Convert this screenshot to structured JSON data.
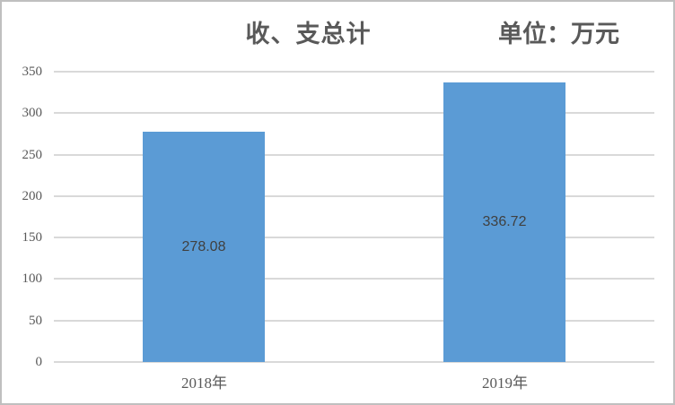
{
  "chart_data": {
    "type": "bar",
    "title": "收、支总计",
    "unit_label": "单位：万元",
    "categories": [
      "2018年",
      "2019年"
    ],
    "values": [
      278.08,
      336.72
    ],
    "value_labels": [
      "278.08",
      "336.72"
    ],
    "ylim": [
      0,
      350
    ],
    "ytick_step": 50,
    "yticks": [
      0,
      50,
      100,
      150,
      200,
      250,
      300,
      350
    ],
    "grid": true,
    "legend": "none",
    "colors": {
      "bar": "#5B9BD5",
      "gridline": "#D9D9D9",
      "axis_text": "#595959",
      "data_label": "#404040",
      "border": "#BFBFBF",
      "background": "#FFFFFF"
    }
  }
}
